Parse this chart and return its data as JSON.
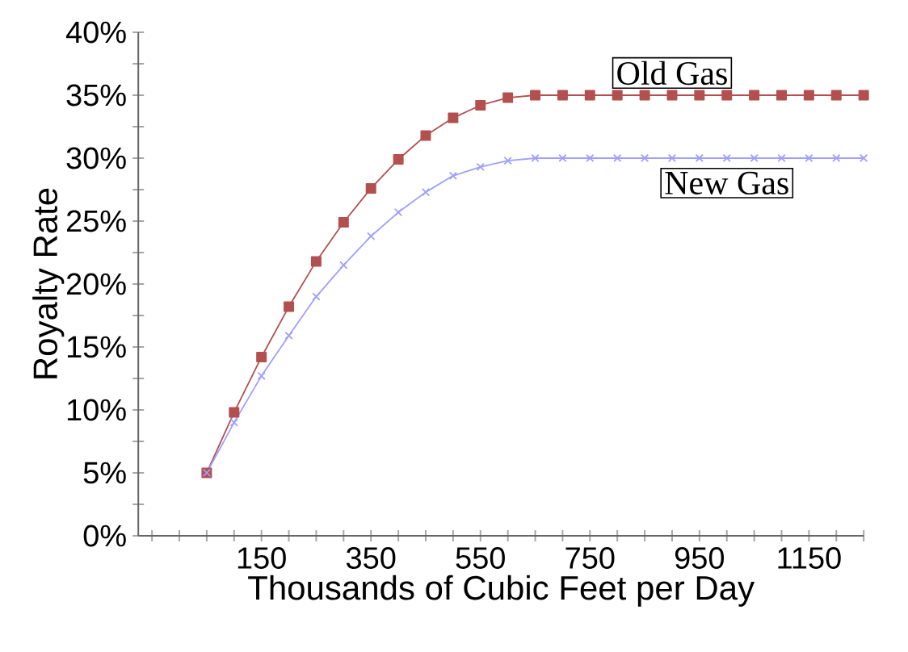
{
  "chart_data": {
    "type": "line",
    "xlabel": "Thousands of Cubic Feet per Day",
    "ylabel": "Royalty Rate",
    "x": [
      50,
      100,
      150,
      200,
      250,
      300,
      350,
      400,
      450,
      500,
      550,
      600,
      650,
      700,
      750,
      800,
      850,
      900,
      950,
      1000,
      1050,
      1100,
      1150,
      1200,
      1250
    ],
    "series": [
      {
        "name": "Old Gas",
        "color": "#b3504f",
        "marker": "square",
        "values": [
          5,
          9.8,
          14.2,
          18.2,
          21.8,
          24.9,
          27.6,
          29.9,
          31.8,
          33.2,
          34.2,
          34.8,
          35,
          35,
          35,
          35,
          35,
          35,
          35,
          35,
          35,
          35,
          35,
          35,
          35
        ]
      },
      {
        "name": "New Gas",
        "color": "#9f9fff",
        "marker": "cross",
        "values": [
          5,
          9.0,
          12.7,
          15.9,
          19.0,
          21.5,
          23.8,
          25.7,
          27.3,
          28.6,
          29.3,
          29.8,
          30,
          30,
          30,
          30,
          30,
          30,
          30,
          30,
          30,
          30,
          30,
          30,
          30
        ]
      }
    ],
    "xlim": [
      -75,
      1250
    ],
    "xticks": [
      {
        "value": -50,
        "label": null
      },
      {
        "value": 0,
        "label": null
      },
      {
        "value": 50,
        "label": null
      },
      {
        "value": 100,
        "label": null
      },
      150,
      {
        "value": 200,
        "label": null
      },
      {
        "value": 250,
        "label": null
      },
      {
        "value": 300,
        "label": null
      },
      350,
      {
        "value": 400,
        "label": null
      },
      {
        "value": 450,
        "label": null
      },
      {
        "value": 500,
        "label": null
      },
      550,
      {
        "value": 600,
        "label": null
      },
      {
        "value": 650,
        "label": null
      },
      {
        "value": 700,
        "label": null
      },
      750,
      {
        "value": 800,
        "label": null
      },
      {
        "value": 850,
        "label": null
      },
      {
        "value": 900,
        "label": null
      },
      950,
      {
        "value": 1000,
        "label": null
      },
      {
        "value": 1050,
        "label": null
      },
      {
        "value": 1100,
        "label": null
      },
      1150,
      {
        "value": 1200,
        "label": null
      },
      {
        "value": 1250,
        "label": null
      }
    ],
    "ylim": [
      0,
      40
    ],
    "yticks": [
      {
        "value": 0,
        "label": "0%"
      },
      {
        "value": 2.5,
        "label": null
      },
      {
        "value": 5,
        "label": "5%"
      },
      {
        "value": 7.5,
        "label": null
      },
      {
        "value": 10,
        "label": "10%"
      },
      {
        "value": 12.5,
        "label": null
      },
      {
        "value": 15,
        "label": "15%"
      },
      {
        "value": 17.5,
        "label": null
      },
      {
        "value": 20,
        "label": "20%"
      },
      {
        "value": 22.5,
        "label": null
      },
      {
        "value": 25,
        "label": "25%"
      },
      {
        "value": 27.5,
        "label": null
      },
      {
        "value": 30,
        "label": "30%"
      },
      {
        "value": 32.5,
        "label": null
      },
      {
        "value": 35,
        "label": "35%"
      },
      {
        "value": 37.5,
        "label": null
      },
      {
        "value": 40,
        "label": "40%"
      }
    ],
    "grid": false,
    "legend": false,
    "line_style": "solid"
  }
}
